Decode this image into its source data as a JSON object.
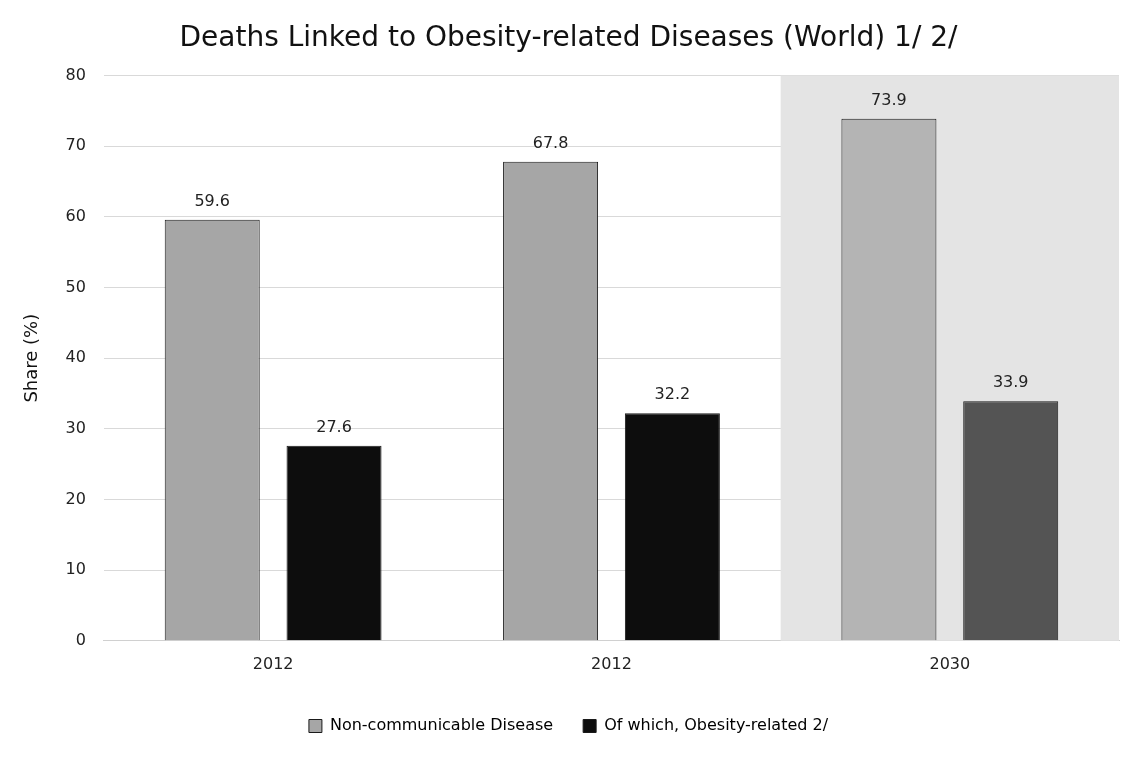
{
  "chart_data": {
    "type": "bar",
    "title": "Deaths Linked to Obesity-related Diseases (World) 1/ 2/",
    "ylabel": "Share (%)",
    "categories": [
      "2012",
      "2012",
      "2030"
    ],
    "series": [
      {
        "name": "Non-communicable Disease",
        "color": "#a6a6a6",
        "colors": [
          "#a6a6a6",
          "#a6a6a6",
          "#b4b4b4"
        ],
        "values": [
          59.6,
          67.8,
          73.9
        ]
      },
      {
        "name": "Of which, Obesity-related 2/",
        "color": "#0d0d0d",
        "colors": [
          "#0d0d0d",
          "#0d0d0d",
          "#545454"
        ],
        "values": [
          27.6,
          32.2,
          33.9
        ]
      }
    ],
    "ylim": [
      0,
      80
    ],
    "yticks": [
      0,
      10,
      20,
      30,
      40,
      50,
      60,
      70,
      80
    ],
    "grid": "y",
    "legend": "bottom",
    "data_labels": true,
    "bands": [
      {
        "axis": "x",
        "from": "2030",
        "to": "2030",
        "color": "#e4e4e4"
      }
    ]
  }
}
